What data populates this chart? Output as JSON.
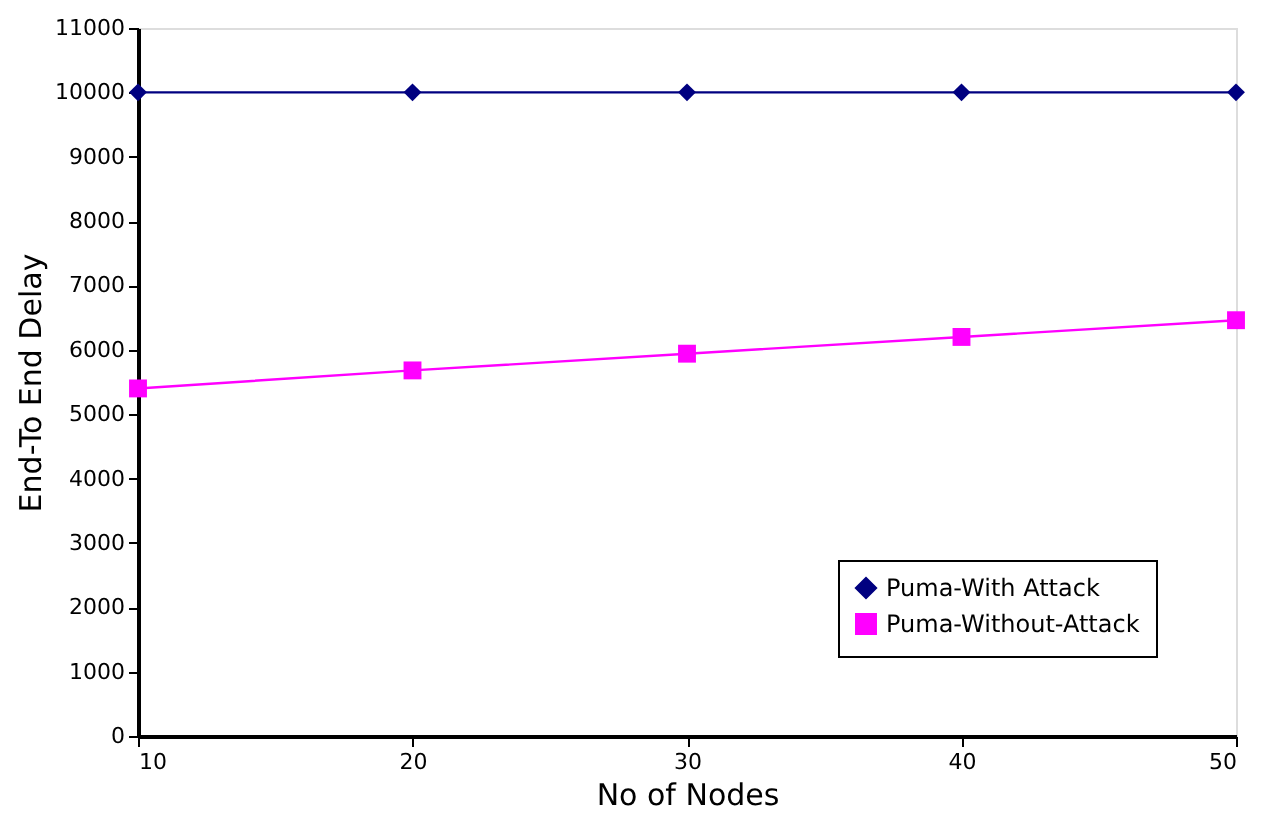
{
  "chart_data": {
    "type": "line",
    "xlabel": "No of Nodes",
    "ylabel": "End-To End Delay",
    "x": [
      10,
      20,
      30,
      40,
      50
    ],
    "series": [
      {
        "name": "Puma-With Attack",
        "color": "#000080",
        "marker": "diamond",
        "values": [
          10000,
          10000,
          10000,
          10000,
          10000
        ]
      },
      {
        "name": "Puma-Without-Attack",
        "color": "#ff00ff",
        "marker": "square",
        "values": [
          5400,
          5680,
          5940,
          6200,
          6460
        ]
      }
    ],
    "xlim": [
      10,
      50
    ],
    "xticks": [
      10,
      20,
      30,
      40,
      50
    ],
    "ylim": [
      0,
      11000
    ],
    "yticks": [
      0,
      1000,
      2000,
      3000,
      4000,
      5000,
      6000,
      7000,
      8000,
      9000,
      10000,
      11000
    ],
    "grid": false,
    "legend": "bottom right",
    "line_style": "solid"
  }
}
